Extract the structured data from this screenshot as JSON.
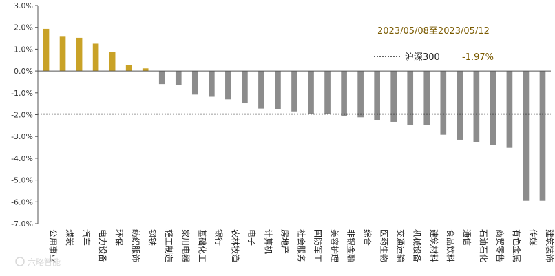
{
  "chart_data": {
    "type": "bar",
    "date_range": "2023/05/08至2023/05/12",
    "benchmark": {
      "name": "沪深300",
      "value": -1.97,
      "value_label": "-1.97%"
    },
    "yticks": [
      "3.0%",
      "2.0%",
      "1.0%",
      "0.0%",
      "-1.0%",
      "-2.0%",
      "-3.0%",
      "-4.0%",
      "-5.0%",
      "-6.0%",
      "-7.0%"
    ],
    "ylim": [
      -7,
      3
    ],
    "grid": false,
    "colors": {
      "positive": "#C9A227",
      "negative": "#8C8C8C",
      "benchmark_line": "#000000"
    },
    "categories": [
      "公用事业",
      "煤炭",
      "汽车",
      "电力设备",
      "环保",
      "纺织服饰",
      "钢铁",
      "轻工制造",
      "家用电器",
      "基础化工",
      "银行",
      "农林牧渔",
      "电子",
      "计算机",
      "房地产",
      "社会服务",
      "国防军工",
      "美容护理",
      "非银金融",
      "综合",
      "医药生物",
      "交通运输",
      "机械设备",
      "建筑材料",
      "食品饮料",
      "通信",
      "石油石化",
      "商贸零售",
      "有色金属",
      "传媒",
      "建筑装饰"
    ],
    "values": [
      1.93,
      1.57,
      1.52,
      1.25,
      0.88,
      0.28,
      0.12,
      -0.6,
      -0.65,
      -1.08,
      -1.18,
      -1.3,
      -1.48,
      -1.72,
      -1.74,
      -1.85,
      -1.98,
      -1.98,
      -2.07,
      -2.12,
      -2.25,
      -2.33,
      -2.48,
      -2.48,
      -2.92,
      -3.15,
      -3.25,
      -3.4,
      -3.52,
      -5.95,
      -5.95
    ]
  },
  "watermark": {
    "text": "六略智能"
  }
}
